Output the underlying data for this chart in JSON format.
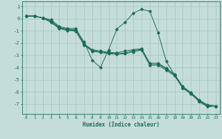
{
  "xlabel": "Humidex (Indice chaleur)",
  "ylabel": "",
  "bg_color": "#c5ddd8",
  "grid_color": "#a8c8c0",
  "line_color": "#1a6b5a",
  "xlim": [
    -0.5,
    23.5
  ],
  "ylim": [
    -7.8,
    1.4
  ],
  "yticks": [
    1,
    0,
    -1,
    -2,
    -3,
    -4,
    -5,
    -6,
    -7
  ],
  "xticks": [
    0,
    1,
    2,
    3,
    4,
    5,
    6,
    7,
    8,
    9,
    10,
    11,
    12,
    13,
    14,
    15,
    16,
    17,
    18,
    19,
    20,
    21,
    22,
    23
  ],
  "series": [
    [
      0.2,
      0.2,
      0.05,
      -0.1,
      -0.65,
      -0.8,
      -0.82,
      -1.9,
      -3.4,
      -4.0,
      -2.55,
      -0.85,
      -0.3,
      0.45,
      0.75,
      0.6,
      -1.15,
      -3.5,
      -4.6,
      -5.7,
      -6.1,
      -6.8,
      -7.2,
      -7.15
    ],
    [
      0.2,
      0.2,
      0.05,
      -0.2,
      -0.72,
      -0.88,
      -0.92,
      -2.05,
      -2.55,
      -2.65,
      -2.75,
      -2.8,
      -2.65,
      -2.55,
      -2.45,
      -3.65,
      -3.65,
      -4.05,
      -4.55,
      -5.55,
      -6.05,
      -6.65,
      -7.05,
      -7.15
    ],
    [
      0.2,
      0.2,
      0.05,
      -0.28,
      -0.78,
      -0.93,
      -0.98,
      -2.12,
      -2.62,
      -2.72,
      -2.82,
      -2.87,
      -2.82,
      -2.62,
      -2.52,
      -3.72,
      -3.72,
      -4.12,
      -4.62,
      -5.62,
      -6.12,
      -6.72,
      -7.12,
      -7.15
    ],
    [
      0.2,
      0.2,
      0.05,
      -0.32,
      -0.82,
      -0.97,
      -1.02,
      -2.15,
      -2.67,
      -2.77,
      -2.87,
      -2.92,
      -2.87,
      -2.72,
      -2.57,
      -3.82,
      -3.82,
      -4.22,
      -4.67,
      -5.67,
      -6.17,
      -6.77,
      -7.17,
      -7.15
    ]
  ]
}
